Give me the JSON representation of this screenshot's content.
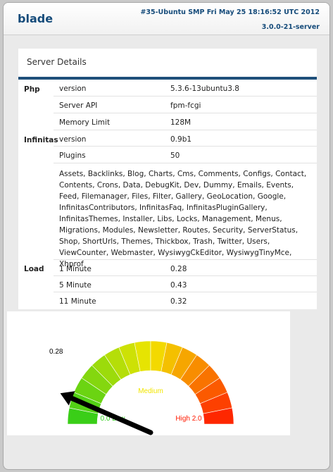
{
  "header": {
    "hostname": "blade",
    "uname": "#35-Ubuntu SMP Fri May 25 18:16:52 UTC 2012",
    "release": "3.0.0-21-server"
  },
  "panel": {
    "title": "Server Details",
    "sections": {
      "php": "Php",
      "infinitas": "Infinitas",
      "load": "Load"
    },
    "rows": [
      {
        "key": "version",
        "value": "5.3.6-13ubuntu3.8"
      },
      {
        "key": "Server API",
        "value": "fpm-fcgi"
      },
      {
        "key": "Memory Limit",
        "value": "128M"
      },
      {
        "key": "version",
        "value": "0.9b1"
      },
      {
        "key": "Plugins",
        "value": "50"
      }
    ],
    "plugin_list": "Assets, Backlinks, Blog, Charts, Cms, Comments, Configs, Contact, Contents, Crons, Data, DebugKit, Dev, Dummy, Emails, Events, Feed, Filemanager, Files, Filter, Gallery, GeoLocation, Google, InfinitasContributors, InfinitasFaq, InfinitasPluginGallery, InfinitasThemes, Installer, Libs, Locks, Management, Menus, Migrations, Modules, Newsletter, Routes, Security, ServerStatus, Shop, ShortUrls, Themes, Thickbox, Trash, Twitter, Users, ViewCounter, Webmaster, WysiwygCkEditor, WysiwygTinyMce, Xhprof",
    "load_rows": [
      {
        "key": "1 Minute",
        "value": "0.28"
      },
      {
        "key": "5 Minute",
        "value": "0.43"
      },
      {
        "key": "11 Minute",
        "value": "0.32"
      }
    ]
  },
  "gauge": {
    "value": 0.28,
    "value_label": "0.28",
    "min": 0,
    "max": 2,
    "low_label": "0.0 Low",
    "medium_label": "Medium",
    "high_label": "High 2.0",
    "colors": {
      "low": "#2ecc1a",
      "medium": "#f2e600",
      "high": "#ff1a00",
      "needle": "#000000"
    }
  }
}
